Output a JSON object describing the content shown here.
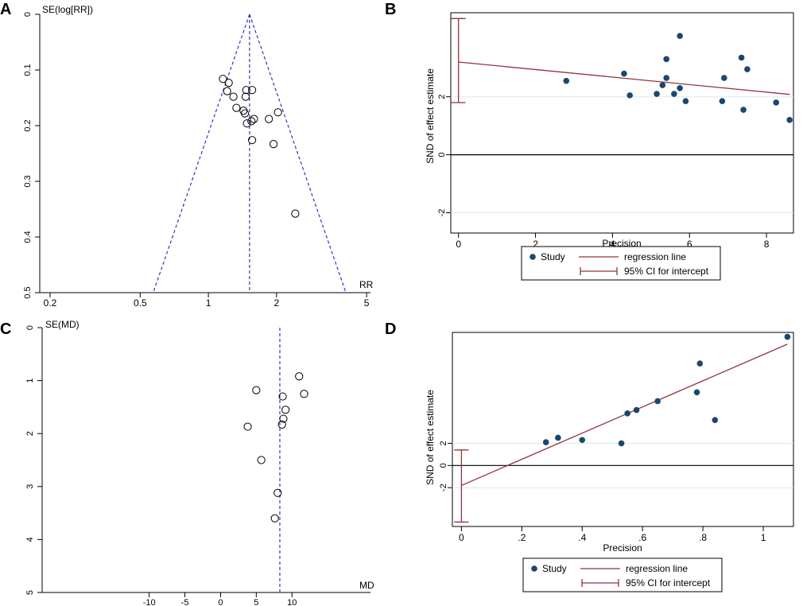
{
  "chart_data": [
    {
      "panel": "A",
      "type": "scatter",
      "subtype": "funnel_plot",
      "xlabel": "RR",
      "ylabel": "SE(log[RR])",
      "xscale": "log",
      "xlim": [
        0.18,
        5.2
      ],
      "ylim": [
        0,
        0.5
      ],
      "x_ticks": [
        "0.2",
        "0.5",
        "1",
        "2",
        "5"
      ],
      "x_tick_values": [
        0.2,
        0.5,
        1,
        2,
        5
      ],
      "y_ticks": [
        "0",
        "0.1",
        "0.2",
        "0.3",
        "0.4",
        "0.5"
      ],
      "y_tick_values": [
        0,
        0.1,
        0.2,
        0.3,
        0.4,
        0.5
      ],
      "pooled_estimate": 1.52,
      "points": [
        {
          "rr": 1.16,
          "se": 0.116
        },
        {
          "rr": 1.23,
          "se": 0.123
        },
        {
          "rr": 1.21,
          "se": 0.138
        },
        {
          "rr": 1.29,
          "se": 0.148
        },
        {
          "rr": 1.47,
          "se": 0.136
        },
        {
          "rr": 1.56,
          "se": 0.136
        },
        {
          "rr": 1.46,
          "se": 0.148
        },
        {
          "rr": 1.33,
          "se": 0.168
        },
        {
          "rr": 1.43,
          "se": 0.173
        },
        {
          "rr": 1.45,
          "se": 0.178
        },
        {
          "rr": 1.48,
          "se": 0.196
        },
        {
          "rr": 1.55,
          "se": 0.192
        },
        {
          "rr": 1.59,
          "se": 0.188
        },
        {
          "rr": 1.85,
          "se": 0.188
        },
        {
          "rr": 2.03,
          "se": 0.176
        },
        {
          "rr": 1.56,
          "se": 0.226
        },
        {
          "rr": 1.94,
          "se": 0.233
        },
        {
          "rr": 2.42,
          "se": 0.358
        }
      ]
    },
    {
      "panel": "B",
      "type": "scatter",
      "subtype": "egger_regression",
      "xlabel": "Precision",
      "ylabel": "SND of effect estimate",
      "xlim": [
        -0.2,
        8.7
      ],
      "ylim": [
        -2.7,
        4.9
      ],
      "x_ticks": [
        "0",
        "2",
        "4",
        "6",
        "8"
      ],
      "x_tick_values": [
        0,
        2,
        4,
        6,
        8
      ],
      "y_ticks": [
        "-2",
        "0",
        "2"
      ],
      "y_tick_values": [
        -2,
        0,
        2
      ],
      "points": [
        {
          "x": 2.8,
          "y": 2.55
        },
        {
          "x": 4.3,
          "y": 2.8
        },
        {
          "x": 4.45,
          "y": 2.05
        },
        {
          "x": 5.15,
          "y": 2.1
        },
        {
          "x": 5.3,
          "y": 2.4
        },
        {
          "x": 5.4,
          "y": 3.3
        },
        {
          "x": 5.4,
          "y": 2.65
        },
        {
          "x": 5.6,
          "y": 2.1
        },
        {
          "x": 5.75,
          "y": 4.1
        },
        {
          "x": 5.75,
          "y": 2.3
        },
        {
          "x": 5.9,
          "y": 1.85
        },
        {
          "x": 6.85,
          "y": 1.85
        },
        {
          "x": 6.9,
          "y": 2.65
        },
        {
          "x": 7.35,
          "y": 3.35
        },
        {
          "x": 7.4,
          "y": 1.55
        },
        {
          "x": 7.5,
          "y": 2.95
        },
        {
          "x": 8.25,
          "y": 1.8
        },
        {
          "x": 8.6,
          "y": 1.2
        }
      ],
      "regression": {
        "intercept": 3.2,
        "slope": -0.13
      },
      "intercept_ci": [
        1.8,
        4.7
      ],
      "legend": {
        "study": "Study",
        "regression": "regression line",
        "ci": "95% CI for intercept"
      }
    },
    {
      "panel": "C",
      "type": "scatter",
      "subtype": "funnel_plot",
      "xlabel": "MD",
      "ylabel": "SE(MD)",
      "xlim": [
        -25,
        21
      ],
      "ylim": [
        0,
        5
      ],
      "x_ticks": [
        "-10",
        "-5",
        "0",
        "5",
        "10"
      ],
      "x_tick_values": [
        -10,
        -5,
        0,
        5,
        10
      ],
      "y_ticks": [
        "0",
        "1",
        "2",
        "3",
        "4",
        "5"
      ],
      "y_tick_values": [
        0,
        1,
        2,
        3,
        4,
        5
      ],
      "pooled_estimate": 8.3,
      "points": [
        {
          "md": 11.0,
          "se": 0.92
        },
        {
          "md": 5.0,
          "se": 1.18
        },
        {
          "md": 11.7,
          "se": 1.25
        },
        {
          "md": 8.7,
          "se": 1.3
        },
        {
          "md": 9.1,
          "se": 1.55
        },
        {
          "md": 8.8,
          "se": 1.72
        },
        {
          "md": 8.6,
          "se": 1.83
        },
        {
          "md": 3.8,
          "se": 1.87
        },
        {
          "md": 5.7,
          "se": 2.5
        },
        {
          "md": 8.0,
          "se": 3.12
        },
        {
          "md": 7.6,
          "se": 3.6
        }
      ]
    },
    {
      "panel": "D",
      "type": "scatter",
      "subtype": "egger_regression",
      "xlabel": "Precision",
      "ylabel": "SND of effect estimate",
      "xlim": [
        -0.03,
        1.1
      ],
      "ylim": [
        -5.5,
        12
      ],
      "x_ticks": [
        "0",
        ".2",
        ".4",
        ".6",
        ".8",
        "1"
      ],
      "x_tick_values": [
        0,
        0.2,
        0.4,
        0.6,
        0.8,
        1.0
      ],
      "y_ticks": [
        "-2",
        "0",
        "2"
      ],
      "y_tick_values": [
        -2,
        0,
        2
      ],
      "points": [
        {
          "x": 0.28,
          "y": 2.1
        },
        {
          "x": 0.32,
          "y": 2.5
        },
        {
          "x": 0.4,
          "y": 2.3
        },
        {
          "x": 0.53,
          "y": 2.0
        },
        {
          "x": 0.55,
          "y": 4.7
        },
        {
          "x": 0.58,
          "y": 5.0
        },
        {
          "x": 0.65,
          "y": 5.8
        },
        {
          "x": 0.78,
          "y": 6.6
        },
        {
          "x": 0.79,
          "y": 9.2
        },
        {
          "x": 0.84,
          "y": 4.1
        },
        {
          "x": 1.08,
          "y": 11.6
        }
      ],
      "regression": {
        "intercept": -1.8,
        "slope": 11.8
      },
      "intercept_ci": [
        -5.1,
        1.4
      ],
      "legend": {
        "study": "Study",
        "regression": "regression line",
        "ci": "95% CI for intercept"
      }
    }
  ],
  "panel_labels": {
    "a": "A",
    "b": "B",
    "c": "C",
    "d": "D"
  },
  "colors": {
    "funnel_line": "#3333cc",
    "marker_fill": "#1a476f",
    "regression_line": "#90353b",
    "axis": "#000000",
    "gridline": "#d9ecef"
  }
}
